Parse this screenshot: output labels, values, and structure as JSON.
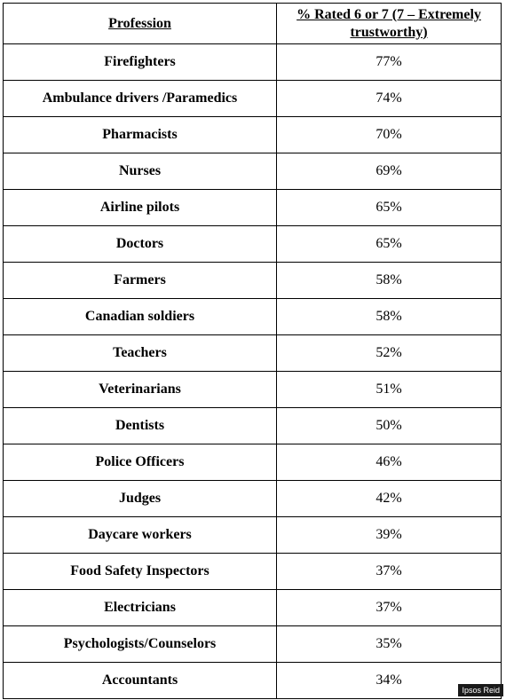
{
  "table": {
    "headers": {
      "profession": "Profession",
      "rating": "% Rated 6 or 7 (7 – Extremely trustworthy)"
    },
    "rows": [
      {
        "profession": "Firefighters",
        "value": "77%"
      },
      {
        "profession": "Ambulance drivers /Paramedics",
        "value": "74%"
      },
      {
        "profession": "Pharmacists",
        "value": "70%"
      },
      {
        "profession": "Nurses",
        "value": "69%"
      },
      {
        "profession": "Airline pilots",
        "value": "65%"
      },
      {
        "profession": "Doctors",
        "value": "65%"
      },
      {
        "profession": "Farmers",
        "value": "58%"
      },
      {
        "profession": "Canadian soldiers",
        "value": "58%"
      },
      {
        "profession": "Teachers",
        "value": "52%"
      },
      {
        "profession": "Veterinarians",
        "value": "51%"
      },
      {
        "profession": "Dentists",
        "value": "50%"
      },
      {
        "profession": "Police Officers",
        "value": "46%"
      },
      {
        "profession": "Judges",
        "value": "42%"
      },
      {
        "profession": "Daycare workers",
        "value": "39%"
      },
      {
        "profession": "Food Safety Inspectors",
        "value": "37%"
      },
      {
        "profession": "Electricians",
        "value": "37%"
      },
      {
        "profession": "Psychologists/Counselors",
        "value": "35%"
      },
      {
        "profession": "Accountants",
        "value": "34%"
      }
    ]
  },
  "watermark": "Ipsos Reid"
}
